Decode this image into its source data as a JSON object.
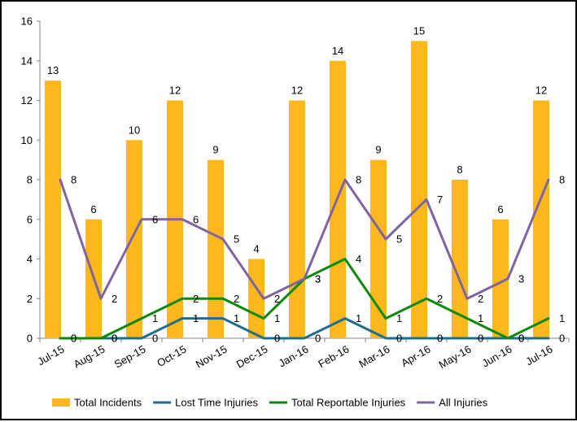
{
  "chart_data": {
    "type": "bar",
    "categories": [
      "Jul-15",
      "Aug-15",
      "Sep-15",
      "Oct-15",
      "Nov-15",
      "Dec-15",
      "Jan-16",
      "Feb-16",
      "Mar-16",
      "Apr-16",
      "May-16",
      "Jun-16",
      "Jul-16"
    ],
    "ylim": [
      0,
      16
    ],
    "yticks": [
      0,
      2,
      4,
      6,
      8,
      10,
      12,
      14,
      16
    ],
    "grid": false,
    "legend_position": "bottom",
    "title": "",
    "xlabel": "",
    "ylabel": "",
    "series": [
      {
        "name": "Total Incidents",
        "type": "bar",
        "color": "#FFB81C",
        "values": [
          13,
          6,
          10,
          12,
          9,
          4,
          12,
          14,
          9,
          15,
          8,
          6,
          12
        ]
      },
      {
        "name": "Lost Time Injuries",
        "type": "line",
        "color": "#1F6E91",
        "values": [
          0,
          0,
          0,
          1,
          1,
          0,
          0,
          1,
          0,
          0,
          0,
          0,
          0
        ]
      },
      {
        "name": "Total Reportable Injuries",
        "type": "line",
        "color": "#0A8A0A",
        "values": [
          0,
          0,
          1,
          2,
          2,
          1,
          3,
          4,
          1,
          2,
          1,
          0,
          1
        ]
      },
      {
        "name": "All Injuries",
        "type": "line",
        "color": "#8064A2",
        "values": [
          8,
          2,
          6,
          6,
          5,
          2,
          3,
          8,
          5,
          7,
          2,
          3,
          8
        ]
      }
    ]
  }
}
